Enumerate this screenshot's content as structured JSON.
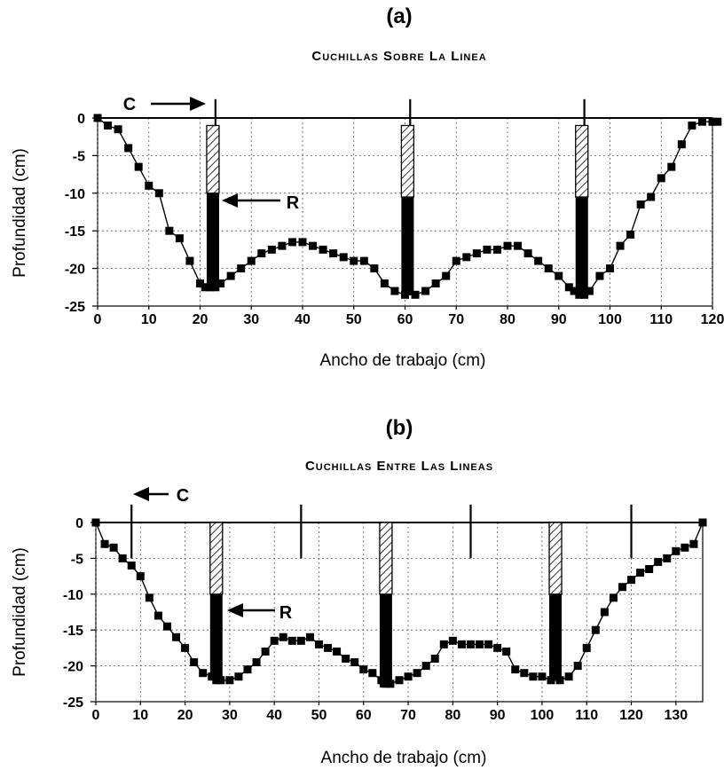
{
  "chart_data": [
    {
      "type": "line",
      "panel_label": "(a)",
      "title": "Cuchillas Sobre La Linea",
      "xlabel": "Ancho de trabajo (cm)",
      "ylabel": "Profundidad (cm)",
      "xlim": [
        0,
        120
      ],
      "ylim": [
        -25,
        0
      ],
      "xticks": [
        0,
        10,
        20,
        30,
        40,
        50,
        60,
        70,
        80,
        90,
        100,
        110,
        120
      ],
      "yticks": [
        0,
        -5,
        -10,
        -15,
        -20,
        -25
      ],
      "grid": true,
      "annotations": [
        {
          "text": "C",
          "points_to_x": 23
        },
        {
          "text": "R",
          "points_to_x": 23
        }
      ],
      "shanks_x": [
        23,
        61,
        95
      ],
      "tines": [
        {
          "x": 22.5,
          "hatched_depth": [
            -1,
            -10
          ],
          "solid_depth": [
            -10,
            -22
          ]
        },
        {
          "x": 60.5,
          "hatched_depth": [
            -1,
            -10.5
          ],
          "solid_depth": [
            -10.5,
            -23.5
          ]
        },
        {
          "x": 94.5,
          "hatched_depth": [
            -1,
            -10.5
          ],
          "solid_depth": [
            -10.5,
            -23.5
          ]
        }
      ],
      "series": [
        {
          "values": [
            [
              0,
              0
            ],
            [
              2,
              -1
            ],
            [
              4,
              -1.5
            ],
            [
              6,
              -4
            ],
            [
              8,
              -6.5
            ],
            [
              10,
              -9
            ],
            [
              12,
              -10
            ],
            [
              14,
              -15
            ],
            [
              16,
              -16
            ],
            [
              18,
              -19
            ],
            [
              20,
              -22
            ],
            [
              21,
              -22.5
            ],
            [
              22,
              -22.5
            ],
            [
              23,
              -22.5
            ],
            [
              24,
              -22
            ],
            [
              26,
              -21
            ],
            [
              28,
              -20
            ],
            [
              30,
              -19
            ],
            [
              32,
              -18
            ],
            [
              34,
              -17.5
            ],
            [
              36,
              -17
            ],
            [
              38,
              -16.5
            ],
            [
              40,
              -16.5
            ],
            [
              42,
              -17
            ],
            [
              44,
              -17.5
            ],
            [
              46,
              -18
            ],
            [
              48,
              -18.5
            ],
            [
              50,
              -19
            ],
            [
              52,
              -19
            ],
            [
              54,
              -20
            ],
            [
              56,
              -22
            ],
            [
              58,
              -23
            ],
            [
              60,
              -23.5
            ],
            [
              62,
              -23.5
            ],
            [
              64,
              -23
            ],
            [
              66,
              -22
            ],
            [
              68,
              -21
            ],
            [
              70,
              -19
            ],
            [
              72,
              -18.5
            ],
            [
              74,
              -18
            ],
            [
              76,
              -17.5
            ],
            [
              78,
              -17.5
            ],
            [
              80,
              -17
            ],
            [
              82,
              -17
            ],
            [
              84,
              -18
            ],
            [
              86,
              -19
            ],
            [
              88,
              -20
            ],
            [
              90,
              -21
            ],
            [
              92,
              -22.5
            ],
            [
              93,
              -23
            ],
            [
              94,
              -23.5
            ],
            [
              95,
              -23.5
            ],
            [
              96,
              -23
            ],
            [
              98,
              -21
            ],
            [
              100,
              -20
            ],
            [
              102,
              -17
            ],
            [
              104,
              -15.5
            ],
            [
              106,
              -11.5
            ],
            [
              108,
              -10.5
            ],
            [
              110,
              -8
            ],
            [
              112,
              -6.5
            ],
            [
              114,
              -3.5
            ],
            [
              116,
              -1
            ],
            [
              118,
              -0.5
            ],
            [
              120,
              -0.5
            ],
            [
              121,
              -0.5
            ]
          ]
        }
      ]
    },
    {
      "type": "line",
      "panel_label": "(b)",
      "title": "Cuchillas Entre Las Lineas",
      "xlabel": "Ancho de trabajo (cm)",
      "ylabel": "Profundidad (cm)",
      "xlim": [
        0,
        136
      ],
      "ylim": [
        -25,
        0
      ],
      "xticks": [
        0,
        10,
        20,
        30,
        40,
        50,
        60,
        70,
        80,
        90,
        100,
        110,
        120,
        130
      ],
      "yticks": [
        0,
        -5,
        -10,
        -15,
        -20,
        -25
      ],
      "grid": true,
      "annotations": [
        {
          "text": "C",
          "points_to_x": 8
        },
        {
          "text": "R",
          "points_to_x": 27
        }
      ],
      "shanks_x": [
        8,
        46,
        84,
        120
      ],
      "tines": [
        {
          "x": 27,
          "hatched_depth": [
            0,
            -10
          ],
          "solid_depth": [
            -10,
            -22
          ]
        },
        {
          "x": 65,
          "hatched_depth": [
            0,
            -10
          ],
          "solid_depth": [
            -10,
            -23
          ]
        },
        {
          "x": 103,
          "hatched_depth": [
            0,
            -10
          ],
          "solid_depth": [
            -10,
            -22
          ]
        }
      ],
      "series": [
        {
          "values": [
            [
              0,
              0
            ],
            [
              2,
              -3
            ],
            [
              4,
              -3.5
            ],
            [
              6,
              -5
            ],
            [
              8,
              -6
            ],
            [
              10,
              -7.5
            ],
            [
              12,
              -10.5
            ],
            [
              14,
              -13
            ],
            [
              16,
              -14.5
            ],
            [
              18,
              -16
            ],
            [
              20,
              -17.5
            ],
            [
              22,
              -19.5
            ],
            [
              24,
              -21
            ],
            [
              26,
              -21.5
            ],
            [
              27,
              -22
            ],
            [
              28,
              -22
            ],
            [
              30,
              -22
            ],
            [
              32,
              -21.5
            ],
            [
              34,
              -20.5
            ],
            [
              36,
              -19.5
            ],
            [
              38,
              -18
            ],
            [
              40,
              -16.5
            ],
            [
              42,
              -16
            ],
            [
              44,
              -16.5
            ],
            [
              46,
              -16.5
            ],
            [
              48,
              -16
            ],
            [
              50,
              -17
            ],
            [
              52,
              -17.5
            ],
            [
              54,
              -18
            ],
            [
              56,
              -19
            ],
            [
              58,
              -19.5
            ],
            [
              60,
              -20.5
            ],
            [
              62,
              -21
            ],
            [
              64,
              -22
            ],
            [
              65,
              -22.5
            ],
            [
              66,
              -22.5
            ],
            [
              68,
              -22
            ],
            [
              70,
              -21.5
            ],
            [
              72,
              -21
            ],
            [
              74,
              -20
            ],
            [
              76,
              -19
            ],
            [
              78,
              -17
            ],
            [
              80,
              -16.5
            ],
            [
              82,
              -17
            ],
            [
              84,
              -17
            ],
            [
              86,
              -17
            ],
            [
              88,
              -17
            ],
            [
              90,
              -17.5
            ],
            [
              92,
              -18
            ],
            [
              94,
              -20.5
            ],
            [
              96,
              -21
            ],
            [
              98,
              -21.5
            ],
            [
              100,
              -21.5
            ],
            [
              102,
              -22
            ],
            [
              104,
              -22
            ],
            [
              106,
              -21.5
            ],
            [
              108,
              -20
            ],
            [
              110,
              -17.5
            ],
            [
              112,
              -15
            ],
            [
              114,
              -12.5
            ],
            [
              116,
              -10.5
            ],
            [
              118,
              -9
            ],
            [
              120,
              -8
            ],
            [
              122,
              -7
            ],
            [
              124,
              -6.5
            ],
            [
              126,
              -5.5
            ],
            [
              128,
              -5
            ],
            [
              130,
              -4
            ],
            [
              132,
              -3.5
            ],
            [
              134,
              -3
            ],
            [
              136,
              0
            ]
          ]
        }
      ]
    }
  ]
}
